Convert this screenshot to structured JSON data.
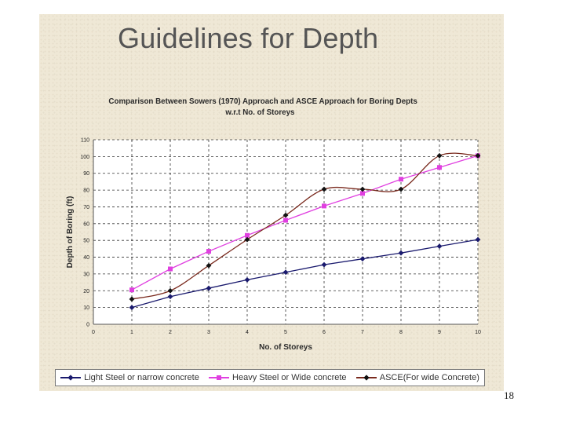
{
  "slide": {
    "title": "Guidelines for Depth",
    "page_number": "18"
  },
  "chart_data": {
    "type": "line",
    "title_line1": "Comparison Between Sowers (1970) Approach and ASCE Approach for Boring Depts",
    "title_line2": "w.r.t No. of Storeys",
    "xlabel": "No. of Storeys",
    "ylabel": "Depth of Boring (ft)",
    "xlim": [
      0,
      10
    ],
    "ylim": [
      0,
      110
    ],
    "xticks": [
      0,
      1,
      2,
      3,
      4,
      5,
      6,
      7,
      8,
      9,
      10
    ],
    "yticks": [
      0,
      10,
      20,
      30,
      40,
      50,
      60,
      70,
      80,
      90,
      100,
      110
    ],
    "grid": true,
    "legend_position": "bottom",
    "series": [
      {
        "name": "Light Steel or narrow concrete",
        "color": "#1a1a6e",
        "marker": "diamond",
        "smooth": false,
        "x": [
          1,
          2,
          3,
          4,
          5,
          6,
          7,
          8,
          9,
          10
        ],
        "values": [
          10,
          16.5,
          21.5,
          26.5,
          31,
          35.5,
          39,
          42.5,
          46.5,
          50.5
        ]
      },
      {
        "name": "Heavy Steel or Wide concrete",
        "color": "#e040e0",
        "marker": "square",
        "smooth": false,
        "x": [
          1,
          2,
          3,
          4,
          5,
          6,
          7,
          8,
          9,
          10
        ],
        "values": [
          20.5,
          33,
          43.5,
          53,
          62,
          70.5,
          78,
          86.5,
          93.5,
          100.5
        ]
      },
      {
        "name": "ASCE(For wide Concrete)",
        "color": "#7a2a1e",
        "marker": "diamond",
        "smooth": true,
        "x": [
          1,
          2,
          3,
          4,
          5,
          6,
          7,
          8,
          9,
          10
        ],
        "values": [
          15,
          20,
          35,
          50.5,
          65,
          80.5,
          80.5,
          80.5,
          100.5,
          100.5
        ]
      }
    ]
  }
}
